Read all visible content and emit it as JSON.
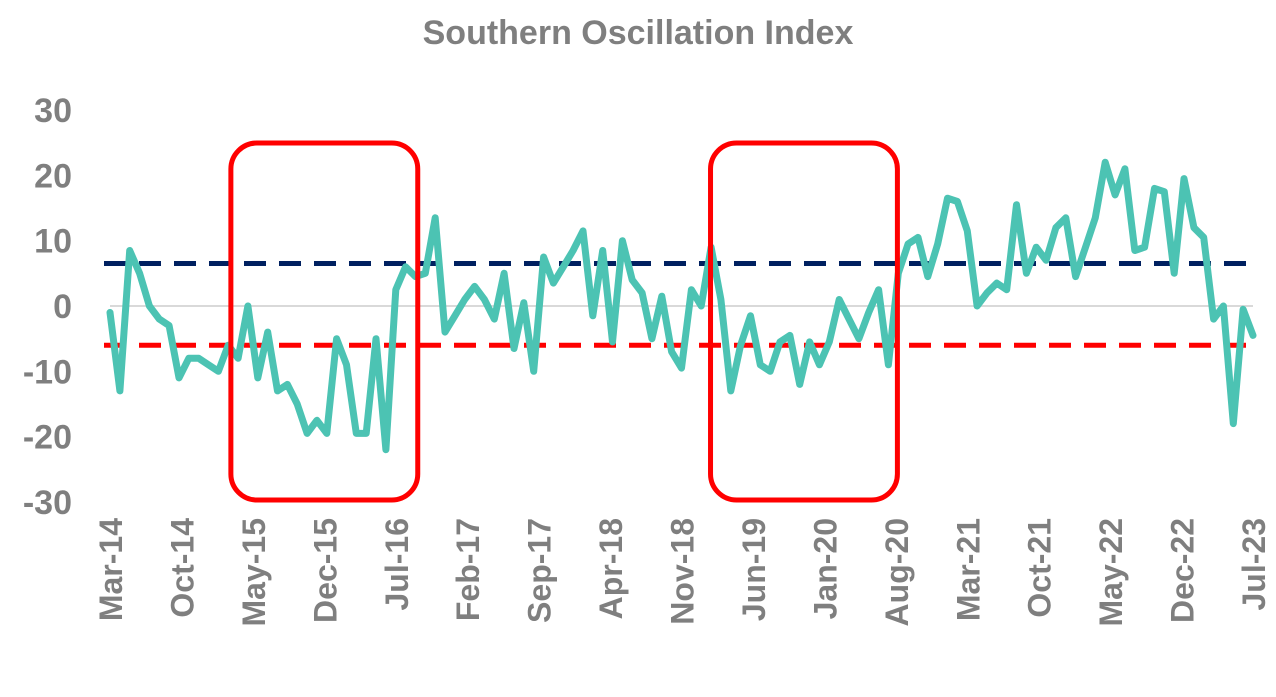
{
  "chart_data": {
    "type": "line",
    "title": "Southern Oscillation Index",
    "xlabel": "",
    "ylabel": "",
    "ylim": [
      -30,
      30
    ],
    "yticks": [
      30,
      20,
      10,
      0,
      -10,
      -20,
      -30
    ],
    "x_tick_labels": [
      "Mar-14",
      "Oct-14",
      "May-15",
      "Dec-15",
      "Jul-16",
      "Feb-17",
      "Sep-17",
      "Apr-18",
      "Nov-18",
      "Jun-19",
      "Jan-20",
      "Aug-20",
      "Mar-21",
      "Oct-21",
      "May-22",
      "Dec-22",
      "Jul-23"
    ],
    "x_start": "Mar-14",
    "x_end": "Jul-23",
    "grid": false,
    "legend": "none",
    "series": [
      {
        "color": "#4cc3b3",
        "values": [
          -1,
          -13,
          8.5,
          5,
          0,
          -2,
          -3,
          -11,
          -8,
          -8,
          -9,
          -10,
          -6,
          -8,
          0,
          -11,
          -4,
          -13,
          -12,
          -15,
          -19.5,
          -17.5,
          -19.5,
          -5,
          -9,
          -19.5,
          -19.5,
          -5,
          -22,
          2.5,
          6,
          4.5,
          5,
          13.5,
          -4,
          -1.5,
          1,
          3,
          1,
          -2,
          5,
          -6.5,
          0.5,
          -10,
          7.5,
          3.5,
          6,
          8.5,
          11.5,
          -1.5,
          8.5,
          -5.5,
          10,
          4,
          2,
          -5,
          1.5,
          -7,
          -9.5,
          2.5,
          0,
          9,
          1,
          -13,
          -6,
          -1.5,
          -9,
          -10,
          -5.5,
          -4.5,
          -12,
          -5.5,
          -9,
          -5.5,
          1,
          -2,
          -5,
          -1,
          2.5,
          -9,
          5,
          9.5,
          10.5,
          4.5,
          9.5,
          16.5,
          16,
          11.5,
          0,
          2,
          3.5,
          2.5,
          15.5,
          5,
          9,
          7,
          12,
          13.5,
          4.5,
          9,
          13.5,
          22,
          17,
          21,
          8.5,
          9,
          18,
          17.5,
          5,
          19.5,
          12,
          10.5,
          -2,
          0,
          -18,
          -0.5,
          -4.5
        ]
      }
    ],
    "reference_lines": [
      {
        "value": 6.5,
        "color": "#002060",
        "style": "dashed"
      },
      {
        "value": -6,
        "color": "#ff0000",
        "style": "dashed"
      }
    ],
    "highlight_boxes": [
      {
        "from": "May-15",
        "to": "Jul-16",
        "color": "#ff0000"
      },
      {
        "from": "Apr-19",
        "to": "Jun-20",
        "color": "#ff0000"
      }
    ]
  }
}
